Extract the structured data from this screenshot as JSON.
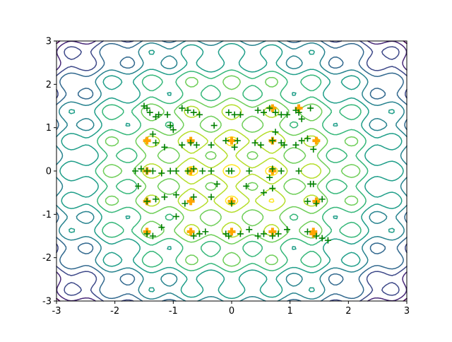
{
  "chart_data": {
    "type": "contour-scatter",
    "contour_colors": [
      "#440154",
      "#482878",
      "#3e4989",
      "#31688e",
      "#26828e",
      "#1f9e89",
      "#35b779",
      "#6ece58",
      "#b5de2b",
      "#fde725"
    ],
    "xlim": [
      -3,
      3
    ],
    "ylim": [
      -3,
      3
    ],
    "xticks": [
      -3,
      -2,
      -1,
      0,
      1,
      2,
      3
    ],
    "yticks": [
      -3,
      -2,
      -1,
      0,
      1,
      2,
      3
    ],
    "series": [
      {
        "color": "#ffa500",
        "marker": "P",
        "x": [
          -1.45,
          -0.7,
          0,
          0.7,
          1.4,
          -1.45,
          -0.7,
          0,
          1.45,
          -1.45,
          -0.7,
          0.7,
          -1.45,
          -0.7,
          0,
          0.7,
          1.45,
          0.7,
          1.15,
          1.4
        ],
        "y": [
          -1.4,
          -1.4,
          -1.4,
          -1.4,
          -1.4,
          -0.7,
          -0.7,
          -0.7,
          -0.7,
          0,
          0,
          0,
          0.7,
          0.7,
          0.7,
          0.7,
          0.7,
          1.45,
          1.45,
          -1.45
        ]
      },
      {
        "color": "#008000",
        "marker": "+",
        "x": [
          -1.45,
          -1.4,
          -1.3,
          -1.25,
          -1.5,
          -1.1,
          -1.05,
          -0.85,
          -0.75,
          -0.65,
          -0.55,
          -0.3,
          -0.05,
          0.05,
          0.15,
          0.45,
          0.55,
          0.65,
          0.75,
          0.85,
          0.95,
          1.1,
          1.15,
          1.2,
          1.35,
          -1.35,
          -1.3,
          -1.15,
          -1.0,
          -0.85,
          -0.7,
          -0.6,
          -0.35,
          -0.1,
          0.05,
          0.1,
          0.4,
          0.5,
          0.7,
          0.75,
          0.85,
          0.9,
          1.1,
          1.2,
          1.3,
          1.4,
          -1.65,
          -1.55,
          -1.45,
          -1.35,
          -1.2,
          -1.05,
          -0.95,
          -0.75,
          -0.65,
          -0.5,
          -0.35,
          -0.05,
          0.0,
          0.3,
          0.65,
          0.7,
          0.85,
          1.15,
          1.35,
          1.4,
          -1.6,
          -1.45,
          -1.3,
          -1.15,
          -0.95,
          -0.8,
          -0.65,
          -0.35,
          -0.25,
          0.0,
          0.25,
          0.55,
          0.7,
          1.3,
          1.45,
          1.55,
          -1.45,
          -1.35,
          -1.2,
          -0.95,
          -0.65,
          -0.55,
          -0.45,
          -0.1,
          -0.05,
          0.15,
          0.3,
          0.45,
          0.55,
          0.7,
          0.8,
          0.95,
          1.3,
          1.45,
          1.55,
          1.65
        ],
        "y": [
          1.45,
          1.35,
          1.25,
          1.3,
          1.5,
          1.3,
          1.05,
          1.45,
          1.4,
          1.35,
          1.3,
          1.05,
          1.35,
          1.3,
          1.3,
          1.4,
          1.35,
          1.45,
          1.35,
          1.3,
          1.3,
          1.4,
          1.35,
          1.2,
          1.45,
          0.85,
          0.65,
          0.55,
          0.95,
          0.6,
          0.65,
          0.6,
          0.6,
          0.7,
          0.55,
          0.7,
          0.65,
          0.6,
          0.7,
          0.9,
          0.65,
          0.6,
          0.6,
          0.7,
          0.75,
          0.5,
          0,
          0.05,
          0.0,
          0.0,
          -0.05,
          0.0,
          0.0,
          0.0,
          0.05,
          0.0,
          0.0,
          0.0,
          0.0,
          0.0,
          -0.15,
          0.05,
          0.0,
          0.0,
          -0.3,
          -0.3,
          -0.35,
          -0.7,
          -0.65,
          -0.6,
          -0.55,
          -0.75,
          -0.6,
          -0.6,
          -0.3,
          -0.75,
          -0.35,
          -0.5,
          -0.4,
          -0.7,
          -0.75,
          -0.65,
          -1.45,
          -1.5,
          -1.3,
          -1.05,
          -1.5,
          -1.45,
          -1.4,
          -1.45,
          -1.5,
          -1.45,
          -1.35,
          -1.5,
          -1.45,
          -1.5,
          -1.45,
          -1.35,
          -1.4,
          -1.5,
          -1.55,
          -1.6
        ]
      }
    ]
  }
}
